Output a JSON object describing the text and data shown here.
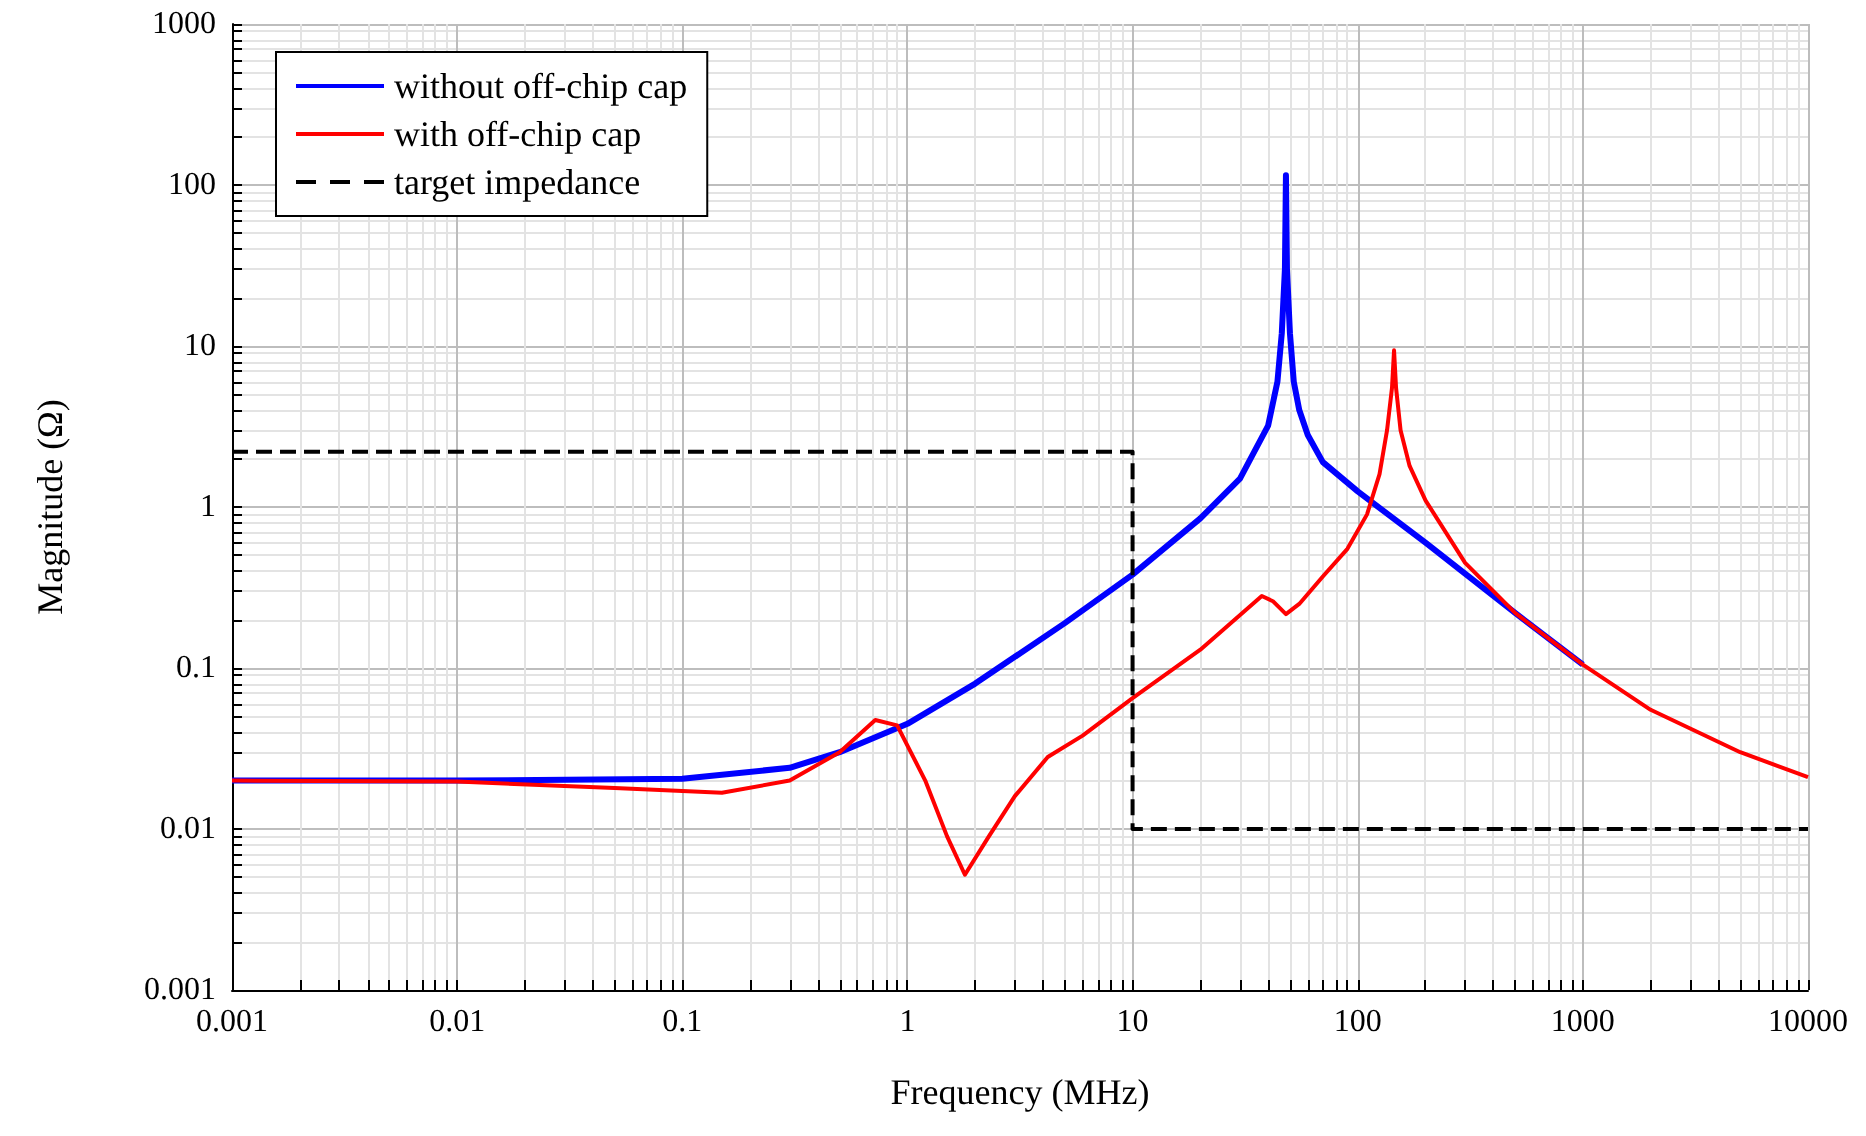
{
  "chart_data": {
    "type": "line",
    "xlabel": "Frequency (MHz)",
    "ylabel": "Magnitude (Ω)",
    "log": "xy",
    "grid": true,
    "legend": "top left",
    "marker": "none",
    "xlim": [
      0.001,
      10000
    ],
    "ylim": [
      0.001,
      1000
    ],
    "xticks": [
      0.001,
      0.01,
      0.1,
      1,
      10,
      100,
      1000,
      10000
    ],
    "yticks": [
      0.001,
      0.01,
      0.1,
      1,
      10,
      100,
      1000
    ],
    "series": [
      {
        "name": "without off-chip cap",
        "color": "#0000ff",
        "line_style": "solid",
        "x": [
          0.001,
          0.01,
          0.1,
          0.3,
          0.5,
          1,
          2,
          5,
          10,
          20,
          30,
          40,
          44,
          46,
          47.5,
          48,
          48.5,
          50,
          52,
          55,
          60,
          70,
          100,
          200,
          500,
          1000
        ],
        "values": [
          0.02,
          0.02,
          0.0205,
          0.024,
          0.03,
          0.045,
          0.08,
          0.19,
          0.38,
          0.85,
          1.5,
          3.2,
          6,
          12,
          30,
          115,
          30,
          12,
          6,
          4,
          2.8,
          1.9,
          1.25,
          0.6,
          0.22,
          0.105
        ]
      },
      {
        "name": "with off-chip cap",
        "color": "#ff0000",
        "line_style": "solid",
        "x": [
          0.001,
          0.01,
          0.05,
          0.15,
          0.3,
          0.5,
          0.72,
          0.9,
          1.2,
          1.5,
          1.8,
          2.3,
          3,
          4.2,
          6,
          10,
          20,
          37.5,
          42,
          48,
          55,
          70,
          90,
          110,
          125,
          135,
          142,
          145,
          148,
          155,
          170,
          200,
          300,
          500,
          1000,
          2000,
          5000,
          10000
        ],
        "values": [
          0.02,
          0.0197,
          0.018,
          0.0168,
          0.02,
          0.03,
          0.0475,
          0.044,
          0.02,
          0.009,
          0.0052,
          0.009,
          0.016,
          0.028,
          0.038,
          0.065,
          0.13,
          0.28,
          0.26,
          0.216,
          0.25,
          0.37,
          0.55,
          0.9,
          1.6,
          3,
          5.5,
          9.4,
          5.5,
          3,
          1.8,
          1.1,
          0.45,
          0.22,
          0.105,
          0.055,
          0.03,
          0.021
        ]
      },
      {
        "name": "target impedance",
        "color": "#000000",
        "line_style": "dashed",
        "x": [
          0.001,
          10,
          10,
          10000
        ],
        "values": [
          2.2,
          2.2,
          0.01,
          0.01
        ]
      }
    ]
  }
}
